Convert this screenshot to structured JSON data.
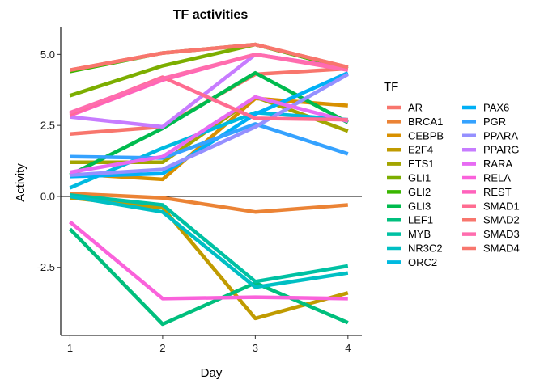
{
  "chart_data": {
    "type": "line",
    "title": "TF activities",
    "xlabel": "Day",
    "ylabel": "Activity",
    "x": [
      1,
      2,
      3,
      4
    ],
    "x_ticks": [
      "1",
      "2",
      "3",
      "4"
    ],
    "y_ticks": [
      "-2.5",
      "0.0",
      "2.5",
      "5.0"
    ],
    "y_tick_values": [
      -2.5,
      0,
      2.5,
      5
    ],
    "xlim": [
      0.9,
      4.15
    ],
    "ylim": [
      -4.9,
      5.95
    ],
    "zero_line": true,
    "grid": false,
    "legend_title": "TF",
    "legend_position": "right",
    "series": [
      {
        "name": "AR",
        "color": "#F8766D",
        "values": [
          2.2,
          2.45,
          4.3,
          4.5
        ]
      },
      {
        "name": "BRCA1",
        "color": "#EB8335",
        "values": [
          0.1,
          -0.05,
          -0.55,
          -0.3
        ]
      },
      {
        "name": "CEBPB",
        "color": "#D89000",
        "values": [
          0.8,
          0.6,
          3.45,
          3.2
        ]
      },
      {
        "name": "E2F4",
        "color": "#C09B00",
        "values": [
          -0.05,
          -0.4,
          -4.3,
          -3.4
        ]
      },
      {
        "name": "ETS1",
        "color": "#A3A500",
        "values": [
          1.2,
          1.2,
          3.5,
          2.3
        ]
      },
      {
        "name": "GLI1",
        "color": "#7CAE00",
        "values": [
          3.55,
          4.6,
          5.35,
          4.5
        ]
      },
      {
        "name": "GLI2",
        "color": "#39B600",
        "values": [
          4.4,
          5.05,
          5.35,
          4.5
        ]
      },
      {
        "name": "GLI3",
        "color": "#00BB4E",
        "values": [
          0.75,
          2.4,
          4.35,
          2.6
        ]
      },
      {
        "name": "LEF1",
        "color": "#00BF7D",
        "values": [
          -1.15,
          -4.5,
          -3.05,
          -4.45
        ]
      },
      {
        "name": "MYB",
        "color": "#00C1A3",
        "values": [
          0.05,
          -0.3,
          -3.0,
          -2.45
        ]
      },
      {
        "name": "NR3C2",
        "color": "#00BFC4",
        "values": [
          0.0,
          -0.55,
          -3.2,
          -2.7
        ]
      },
      {
        "name": "ORC2",
        "color": "#00BAE0",
        "values": [
          0.3,
          1.7,
          2.95,
          2.7
        ]
      },
      {
        "name": "PAX6",
        "color": "#00B0F6",
        "values": [
          0.7,
          0.8,
          2.9,
          4.35
        ]
      },
      {
        "name": "PGR",
        "color": "#35A2FF",
        "values": [
          1.4,
          1.35,
          2.55,
          1.5
        ]
      },
      {
        "name": "PPARA",
        "color": "#9590FF",
        "values": [
          0.75,
          0.95,
          2.45,
          4.3
        ]
      },
      {
        "name": "PPARG",
        "color": "#C77CFF",
        "values": [
          2.8,
          2.45,
          5.0,
          4.5
        ]
      },
      {
        "name": "RARA",
        "color": "#E76BF3",
        "values": [
          0.85,
          1.4,
          3.5,
          2.65
        ]
      },
      {
        "name": "RELA",
        "color": "#FA62DB",
        "values": [
          -0.9,
          -3.6,
          -3.55,
          -3.6
        ]
      },
      {
        "name": "REST",
        "color": "#FF62BC",
        "values": [
          2.85,
          4.1,
          5.0,
          4.5
        ]
      },
      {
        "name": "SMAD1",
        "color": "#FF6C91",
        "values": [
          2.9,
          4.2,
          2.75,
          2.7
        ]
      },
      {
        "name": "SMAD2",
        "color": "#F8766D",
        "values": [
          4.45,
          5.05,
          5.35,
          4.55
        ]
      },
      {
        "name": "SMAD3",
        "color": "#FF6DAE",
        "values": [
          2.95,
          4.15,
          5.0,
          4.45
        ]
      },
      {
        "name": "SMAD4",
        "color": "#F8766D",
        "values": [
          4.45,
          5.05,
          5.35,
          4.55
        ]
      }
    ]
  }
}
